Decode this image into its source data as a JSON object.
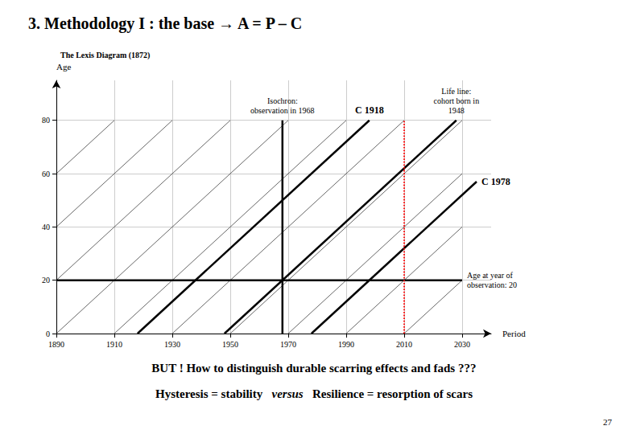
{
  "chart_data": {
    "type": "line",
    "title": "3. Methodology I : the base → A = P – C",
    "subtitle": "The Lexis Diagram (1872)",
    "xlabel": "Period",
    "ylabel": "Age",
    "xlim": [
      1890,
      2040
    ],
    "xticks": [
      1890,
      1910,
      1930,
      1950,
      1970,
      1990,
      2010,
      2030
    ],
    "ylim": [
      0,
      95
    ],
    "yticks": [
      0,
      20,
      40,
      60,
      80
    ],
    "grid": true,
    "series": [
      {
        "color": "#000000",
        "x": [
          1890,
          1890
        ],
        "values": [
          80,
          80
        ]
      },
      {
        "color": "#000000",
        "x": [
          1890,
          1910
        ],
        "values": [
          60,
          80
        ]
      },
      {
        "color": "#000000",
        "x": [
          1890,
          1930
        ],
        "values": [
          40,
          80
        ]
      },
      {
        "color": "#000000",
        "x": [
          1890,
          1950
        ],
        "values": [
          20,
          80
        ]
      },
      {
        "color": "#000000",
        "x": [
          1890,
          1970
        ],
        "values": [
          0,
          80
        ]
      },
      {
        "color": "#000000",
        "x": [
          1910,
          1990
        ],
        "values": [
          0,
          80
        ]
      },
      {
        "color": "#000000",
        "x": [
          1930,
          2010
        ],
        "values": [
          0,
          80
        ]
      },
      {
        "color": "#000000",
        "x": [
          1950,
          2030
        ],
        "values": [
          0,
          80
        ]
      },
      {
        "color": "#000000",
        "x": [
          1970,
          2030
        ],
        "values": [
          0,
          60
        ]
      },
      {
        "color": "#000000",
        "x": [
          1990,
          2030
        ],
        "values": [
          0,
          40
        ]
      },
      {
        "color": "#000000",
        "x": [
          2010,
          2030
        ],
        "values": [
          0,
          20
        ]
      },
      {
        "color": "#000000",
        "x": [
          1918,
          1998
        ],
        "values": [
          0,
          80
        ],
        "label": "C 1918"
      },
      {
        "color": "#000000",
        "x": [
          1978,
          2035
        ],
        "values": [
          0,
          57
        ],
        "label": "C 1978"
      },
      {
        "color": "#000000",
        "x": [
          1948,
          2028
        ],
        "values": [
          0,
          80
        ],
        "label": "Life line:\ncohort born in\n1948"
      },
      {
        "color": "#000000",
        "x": [
          1968,
          1968
        ],
        "values": [
          0,
          80
        ],
        "label": "Isochron:\nobservation in 1968"
      },
      {
        "color": "red",
        "line_style": "dotted",
        "x": [
          2010,
          2010
        ],
        "values": [
          0,
          80
        ]
      },
      {
        "color": "#000000",
        "x": [
          1890,
          2030
        ],
        "values": [
          20,
          20
        ],
        "label": "Age at year of\nobservation: 20"
      }
    ],
    "annotations": [
      "BUT ! How to distinguish durable scarring effects and fads ???",
      "Hysteresis = stability",
      "versus",
      "Resilience = resorption of scars",
      "27"
    ]
  }
}
